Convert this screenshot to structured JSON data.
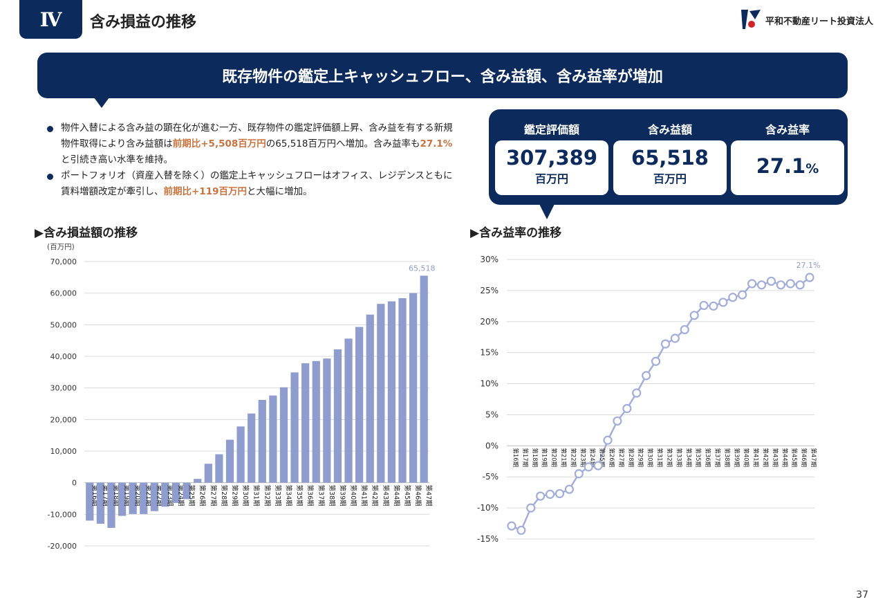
{
  "header": {
    "section_number": "Ⅳ",
    "section_title": "含み損益の推移",
    "company_name": "平和不動産リート投資法人"
  },
  "banner": "既存物件の鑑定上キャッシュフロー、含み益額、含み益率が増加",
  "bullets": {
    "b1_a": "物件入替による含み益の顕在化が進む一方、既存物件の鑑定評価額上昇、含み益を有する新規物件取得により含み益額は",
    "b1_hl1": "前期比+5,508百万円",
    "b1_b": "の65,518百万円へ増加。含み益率も",
    "b1_hl2": "27.1%",
    "b1_c": "と引続き高い水準を維持。",
    "b2_a": "ポートフォリオ（資産入替を除く）の鑑定上キャッシュフローはオフィス、レジデンスともに賃料増額改定が牽引し、",
    "b2_hl": "前期比+119百万円",
    "b2_b": "と大幅に増加。"
  },
  "kpis": [
    {
      "label": "鑑定評価額",
      "value": "307,389",
      "unit": "百万円"
    },
    {
      "label": "含み益額",
      "value": "65,518",
      "unit": "百万円"
    },
    {
      "label": "含み益率",
      "value": "27.1",
      "unit": "%"
    }
  ],
  "left_chart_title": "▶含み損益額の推移",
  "left_chart_unit": "(百万円)",
  "right_chart_title": "▶含み益率の推移",
  "page_number": "37",
  "colors": {
    "navy": "#0c2b5c",
    "bar": "#8f9cce",
    "line": "#a3adda",
    "highlight": "#c9733f",
    "last_label": "#8f9cce"
  },
  "chart_data": [
    {
      "type": "bar",
      "title": "含み損益額の推移",
      "ylabel": "(百万円)",
      "categories": [
        "第16期",
        "第17期",
        "第18期",
        "第19期",
        "第20期",
        "第21期",
        "第22期",
        "第23期",
        "第24期",
        "第25期",
        "第26期",
        "第27期",
        "第28期",
        "第29期",
        "第30期",
        "第31期",
        "第32期",
        "第33期",
        "第34期",
        "第35期",
        "第36期",
        "第37期",
        "第38期",
        "第39期",
        "第40期",
        "第41期",
        "第42期",
        "第43期",
        "第44期",
        "第45期",
        "第46期",
        "第47期"
      ],
      "values": [
        -12000,
        -13000,
        -14300,
        -10500,
        -9900,
        -9900,
        -9000,
        -7600,
        -6400,
        -5200,
        1200,
        6000,
        9000,
        13600,
        17800,
        21900,
        26200,
        27600,
        30200,
        34900,
        37800,
        38500,
        39300,
        42200,
        45600,
        49300,
        53200,
        56600,
        57400,
        58400,
        60010,
        65518
      ],
      "ylim": [
        -20000,
        70000
      ],
      "yticks": [
        -20000,
        -10000,
        0,
        10000,
        20000,
        30000,
        40000,
        50000,
        60000,
        70000
      ],
      "ytick_labels": [
        "-20,000",
        "-10,000",
        "0",
        "10,000",
        "20,000",
        "30,000",
        "40,000",
        "50,000",
        "60,000",
        "70,000"
      ],
      "data_labels": [
        {
          "index": 31,
          "text": "65,518"
        }
      ],
      "grid": true
    },
    {
      "type": "line",
      "title": "含み益率の推移",
      "categories": [
        "第16期",
        "第17期",
        "第18期",
        "第19期",
        "第20期",
        "第21期",
        "第22期",
        "第23期",
        "第24期",
        "第25期",
        "第26期",
        "第27期",
        "第28期",
        "第29期",
        "第30期",
        "第31期",
        "第32期",
        "第33期",
        "第34期",
        "第35期",
        "第36期",
        "第37期",
        "第38期",
        "第39期",
        "第40期",
        "第41期",
        "第42期",
        "第43期",
        "第44期",
        "第45期",
        "第46期",
        "第47期"
      ],
      "values": [
        -12.9,
        -13.6,
        -10.0,
        -8.1,
        -7.8,
        -7.7,
        -7.0,
        -4.5,
        -3.4,
        -3.2,
        0.9,
        4.0,
        6.0,
        8.5,
        11.3,
        13.6,
        16.4,
        17.3,
        18.7,
        21.0,
        22.6,
        22.5,
        23.1,
        23.9,
        24.3,
        26.1,
        25.9,
        26.5,
        25.9,
        26.1,
        25.9,
        27.1
      ],
      "ylim": [
        -15,
        30
      ],
      "yticks": [
        -15,
        -10,
        -5,
        0,
        5,
        10,
        15,
        20,
        25,
        30
      ],
      "ytick_labels": [
        "-15%",
        "-10%",
        "-5%",
        "0%",
        "5%",
        "10%",
        "15%",
        "20%",
        "25%",
        "30%"
      ],
      "data_labels": [
        {
          "index": 31,
          "text": "27.1%"
        }
      ],
      "grid": true
    }
  ]
}
